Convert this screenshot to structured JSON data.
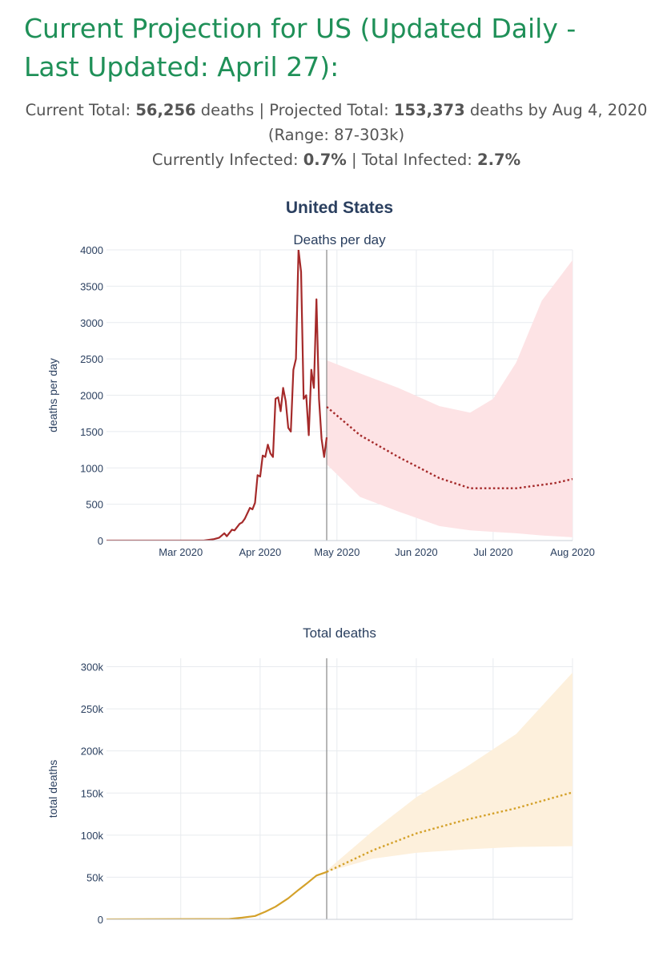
{
  "header": {
    "title": "Current Projection for US (Updated Daily - Last Updated: April 27):"
  },
  "summary": {
    "current_total_label": "Current Total:",
    "current_total_value": "56,256",
    "current_total_unit": "deaths",
    "separator": "|",
    "projected_total_label": "Projected Total:",
    "projected_total_value": "153,373",
    "projected_total_suffix": "deaths by Aug 4, 2020",
    "range_text": "(Range: 87-303k)",
    "currently_infected_label": "Currently Infected:",
    "currently_infected_value": "0.7%",
    "total_infected_label": "Total Infected:",
    "total_infected_value": "2.7%"
  },
  "colors": {
    "heading": "#1f9058",
    "deaths_line": "#a52a2a",
    "deaths_band": "#fde3e5",
    "total_line": "#d4a12a",
    "total_band": "#fdf0dc",
    "grid": "#e8ebef",
    "today_line": "#888888"
  },
  "chart_data": [
    {
      "type": "line",
      "title": "United States",
      "subtitle": "Deaths per day",
      "xlabel": "",
      "ylabel": "deaths per day",
      "ylim": [
        0,
        4000
      ],
      "yticks": [
        0,
        500,
        1000,
        1500,
        2000,
        2500,
        3000,
        3500,
        4000
      ],
      "yticklabels": [
        "0",
        "500",
        "1000",
        "1500",
        "2000",
        "2500",
        "3000",
        "3500",
        "4000"
      ],
      "xlim": [
        "2020-02-01",
        "2020-08-01"
      ],
      "xticks": [
        "2020-03-01",
        "2020-04-01",
        "2020-05-01",
        "2020-06-01",
        "2020-07-01",
        "2020-08-01"
      ],
      "xticklabels": [
        "Mar 2020",
        "Apr 2020",
        "May 2020",
        "Jun 2020",
        "Jul 2020",
        "Aug 2020"
      ],
      "today": "2020-04-27",
      "grid": true,
      "series": [
        {
          "kind": "actual",
          "x": [
            "2020-02-01",
            "2020-03-10",
            "2020-03-14",
            "2020-03-16",
            "2020-03-18",
            "2020-03-19",
            "2020-03-21",
            "2020-03-22",
            "2020-03-24",
            "2020-03-25",
            "2020-03-26",
            "2020-03-28",
            "2020-03-29",
            "2020-03-30",
            "2020-03-31",
            "2020-04-01",
            "2020-04-02",
            "2020-04-03",
            "2020-04-04",
            "2020-04-05",
            "2020-04-06",
            "2020-04-07",
            "2020-04-08",
            "2020-04-09",
            "2020-04-10",
            "2020-04-11",
            "2020-04-12",
            "2020-04-13",
            "2020-04-14",
            "2020-04-15",
            "2020-04-16",
            "2020-04-17",
            "2020-04-18",
            "2020-04-19",
            "2020-04-20",
            "2020-04-21",
            "2020-04-22",
            "2020-04-23",
            "2020-04-24",
            "2020-04-25",
            "2020-04-26",
            "2020-04-27"
          ],
          "y": [
            0,
            0,
            20,
            40,
            100,
            60,
            150,
            140,
            230,
            250,
            300,
            450,
            430,
            520,
            900,
            880,
            1170,
            1150,
            1320,
            1200,
            1150,
            1950,
            1970,
            1780,
            2100,
            1920,
            1550,
            1500,
            2350,
            2500,
            4000,
            3700,
            1950,
            2000,
            1450,
            2350,
            2100,
            3320,
            1950,
            1400,
            1150,
            1420
          ]
        },
        {
          "kind": "projection",
          "x": [
            "2020-04-27",
            "2020-05-10",
            "2020-05-25",
            "2020-06-10",
            "2020-06-22",
            "2020-07-10",
            "2020-07-25",
            "2020-08-04"
          ],
          "y": [
            1840,
            1450,
            1150,
            860,
            720,
            720,
            790,
            870
          ]
        },
        {
          "kind": "range",
          "x": [
            "2020-04-27",
            "2020-05-10",
            "2020-05-25",
            "2020-06-10",
            "2020-06-22",
            "2020-07-01",
            "2020-07-10",
            "2020-07-20",
            "2020-08-04"
          ],
          "upper": [
            2480,
            2300,
            2100,
            1850,
            1760,
            1950,
            2450,
            3300,
            4000
          ],
          "lower": [
            1050,
            600,
            400,
            200,
            140,
            120,
            100,
            70,
            40
          ]
        }
      ]
    },
    {
      "type": "line",
      "title": "Total deaths",
      "xlabel": "",
      "ylabel": "total deaths",
      "ylim": [
        0,
        310000
      ],
      "yticks": [
        0,
        50000,
        100000,
        150000,
        200000,
        250000,
        300000
      ],
      "yticklabels": [
        "0",
        "50k",
        "100k",
        "150k",
        "200k",
        "250k",
        "300k"
      ],
      "xlim": [
        "2020-02-01",
        "2020-08-01"
      ],
      "xticks": [
        "2020-03-01",
        "2020-04-01",
        "2020-05-01",
        "2020-06-01",
        "2020-07-01",
        "2020-08-01"
      ],
      "today": "2020-04-27",
      "grid": true,
      "series": [
        {
          "kind": "actual",
          "x": [
            "2020-02-01",
            "2020-03-20",
            "2020-03-25",
            "2020-03-30",
            "2020-04-03",
            "2020-04-07",
            "2020-04-12",
            "2020-04-16",
            "2020-04-19",
            "2020-04-23",
            "2020-04-27"
          ],
          "y": [
            0,
            500,
            2000,
            4000,
            9000,
            15000,
            25000,
            35000,
            42000,
            52000,
            56256
          ]
        },
        {
          "kind": "projection",
          "x": [
            "2020-04-27",
            "2020-05-15",
            "2020-06-01",
            "2020-06-20",
            "2020-07-10",
            "2020-08-04"
          ],
          "y": [
            56256,
            82000,
            102000,
            118000,
            132000,
            153373
          ]
        },
        {
          "kind": "range",
          "x": [
            "2020-04-27",
            "2020-05-15",
            "2020-06-01",
            "2020-06-20",
            "2020-07-10",
            "2020-08-04"
          ],
          "upper": [
            58000,
            105000,
            145000,
            180000,
            220000,
            303000
          ],
          "lower": [
            56256,
            72000,
            79000,
            83000,
            86000,
            87000
          ]
        }
      ]
    }
  ]
}
